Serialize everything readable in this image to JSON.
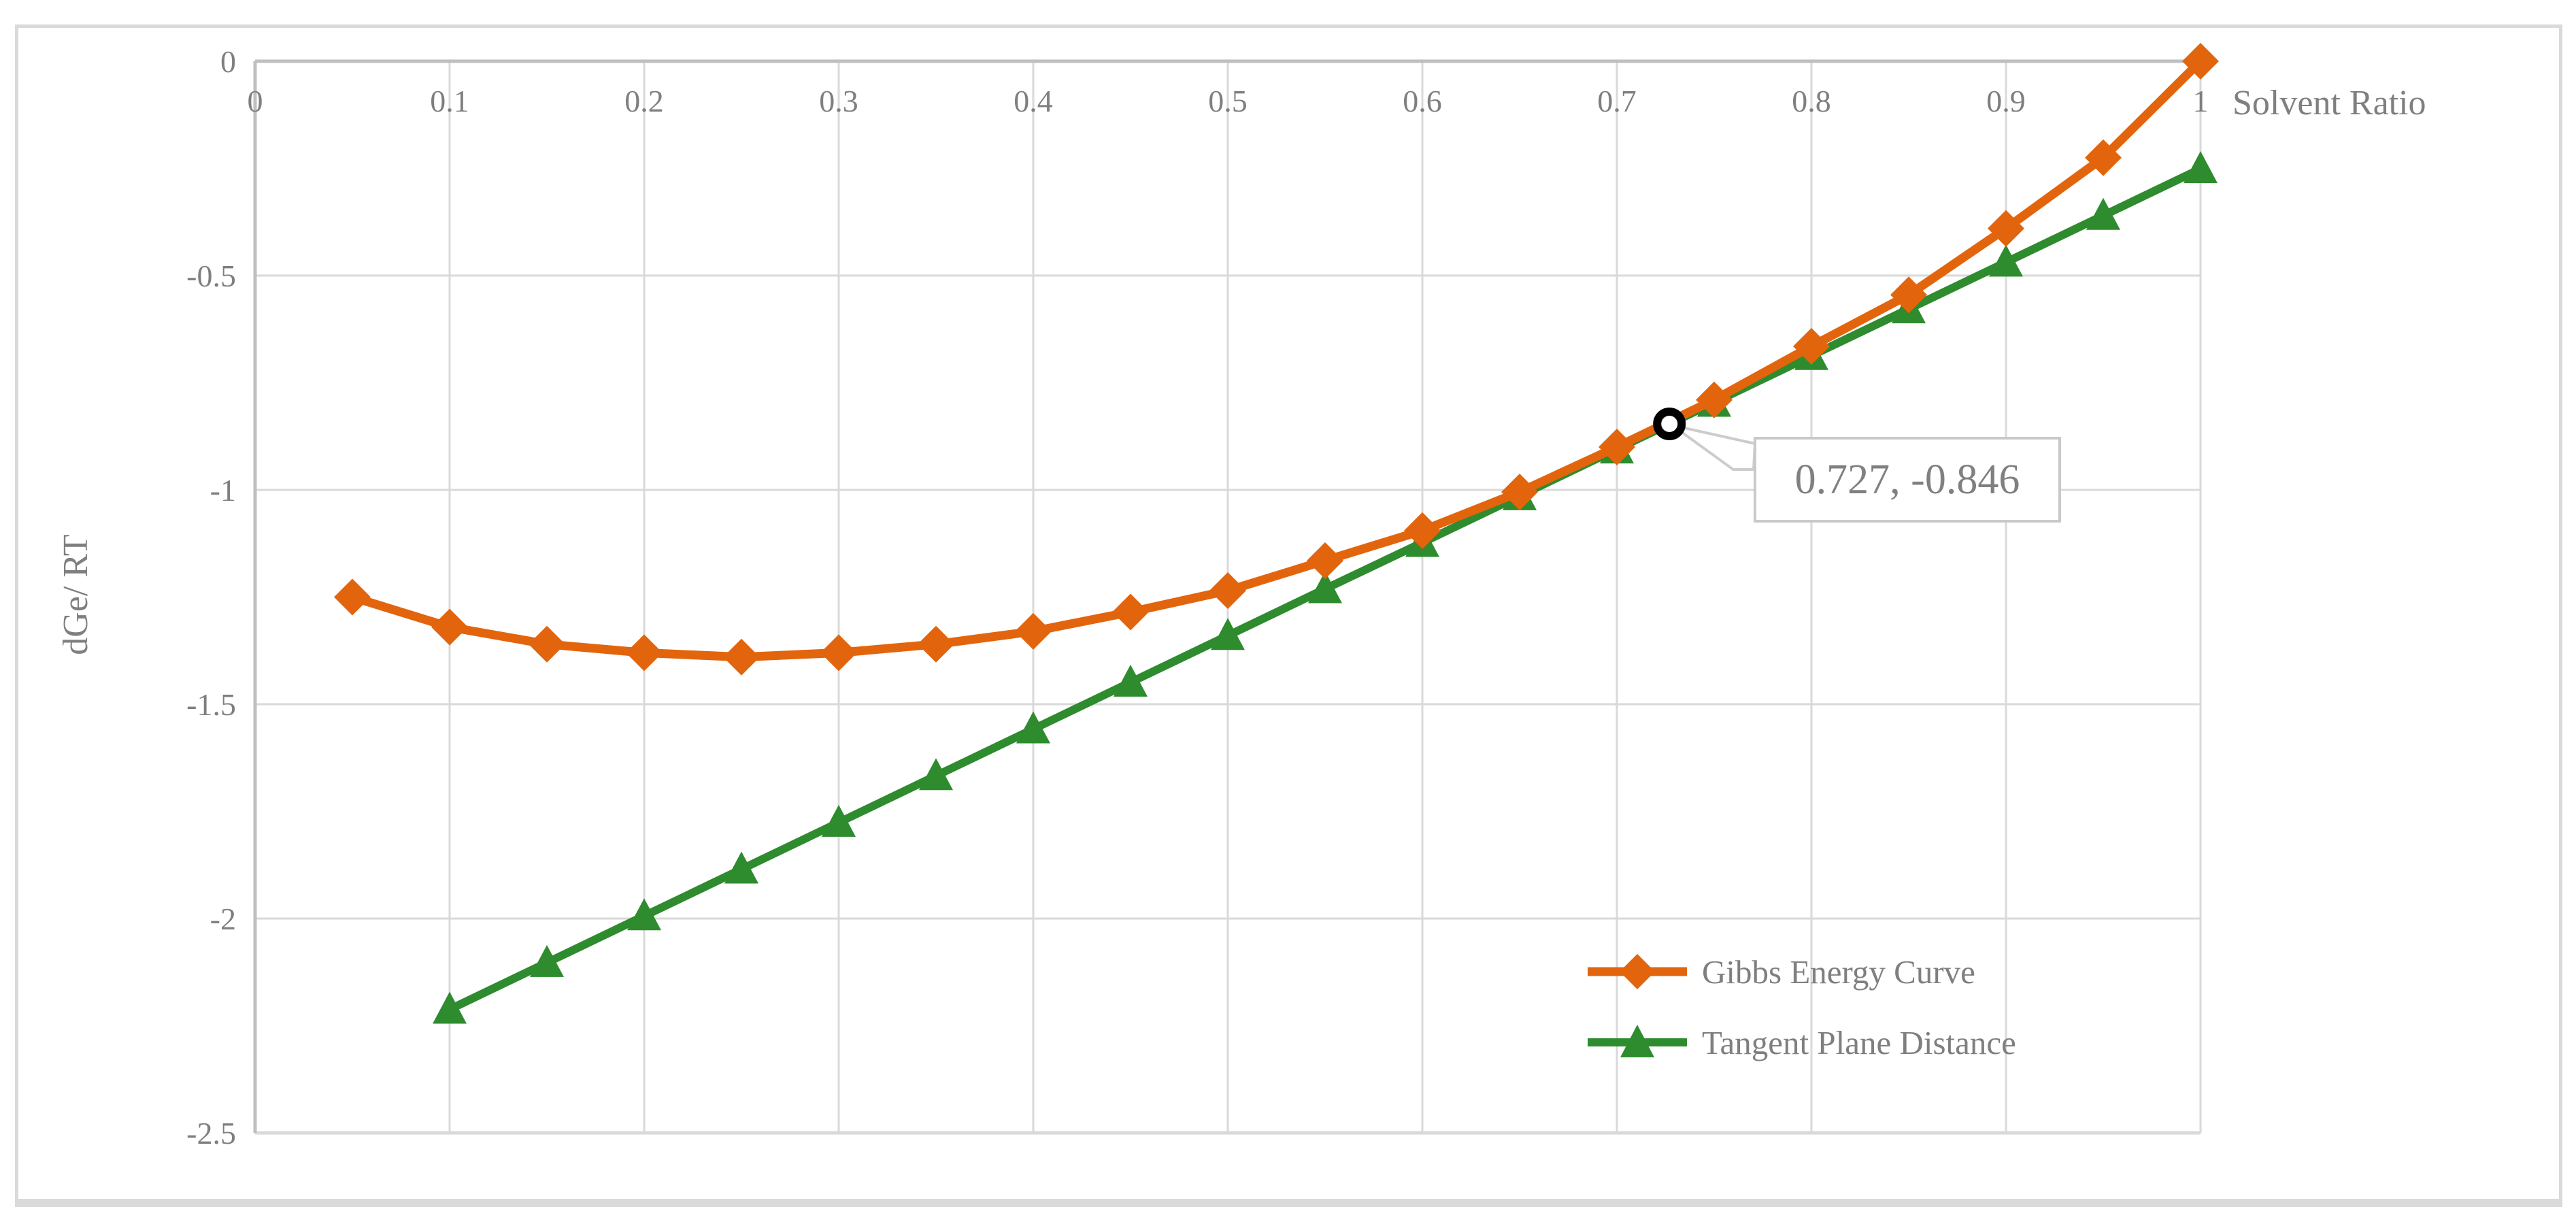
{
  "chart_data": {
    "type": "line",
    "title": "",
    "xlabel": "Solvent Ratio",
    "ylabel": "dGe/ RT",
    "xlim": [
      0,
      1
    ],
    "ylim": [
      -2.5,
      0
    ],
    "grid": true,
    "x_axis_position": "top (at y=0)",
    "legend_position": "inside lower right",
    "x_tick_values": [
      0,
      0.1,
      0.2,
      0.3,
      0.4,
      0.5,
      0.6,
      0.7,
      0.8,
      0.9,
      1
    ],
    "x_tick_labels": [
      "0",
      "0.1",
      "0.2",
      "0.3",
      "0.4",
      "0.5",
      "0.6",
      "0.7",
      "0.8",
      "0.9",
      "1"
    ],
    "y_tick_values": [
      0,
      -0.5,
      -1,
      -1.5,
      -2,
      -2.5
    ],
    "y_tick_labels": [
      "0",
      "-0.5",
      "-1",
      "-1.5",
      "-2",
      "-2.5"
    ],
    "series": [
      {
        "name": "Gibbs Energy Curve",
        "marker": "diamond",
        "color": "#e2650d",
        "x": [
          0.05,
          0.1,
          0.15,
          0.2,
          0.25,
          0.3,
          0.35,
          0.4,
          0.45,
          0.5,
          0.55,
          0.6,
          0.65,
          0.7,
          0.75,
          0.8,
          0.85,
          0.9,
          0.95,
          1.0
        ],
        "y": [
          -1.25,
          -1.32,
          -1.36,
          -1.38,
          -1.39,
          -1.38,
          -1.36,
          -1.33,
          -1.285,
          -1.235,
          -1.165,
          -1.095,
          -1.005,
          -0.9,
          -0.79,
          -0.665,
          -0.545,
          -0.39,
          -0.225,
          0
        ]
      },
      {
        "name": "Tangent Plane Distance",
        "marker": "triangle",
        "color": "#2e8b2e",
        "x": [
          0.1,
          0.15,
          0.2,
          0.25,
          0.3,
          0.35,
          0.4,
          0.45,
          0.5,
          0.55,
          0.6,
          0.65,
          0.7,
          0.75,
          0.8,
          0.85,
          0.9,
          0.95,
          1.0
        ],
        "y": [
          -2.212,
          -2.103,
          -1.994,
          -1.885,
          -1.776,
          -1.667,
          -1.558,
          -1.449,
          -1.34,
          -1.231,
          -1.123,
          -1.014,
          -0.905,
          -0.796,
          -0.687,
          -0.578,
          -0.469,
          -0.36,
          -0.251
        ]
      }
    ],
    "annotation": {
      "label": "0.727, -0.846",
      "x": 0.727,
      "y": -0.846,
      "marker": "open-circle",
      "marker_color": "#000000"
    }
  },
  "colors": {
    "background": "#ffffff",
    "gridline": "#d9d9d9",
    "axis_line": "#bfbfbf",
    "tick_text": "#7f7f7f",
    "axis_title_text": "#7f7f7f",
    "legend_text": "#7f7f7f",
    "callout_border": "#c9c9c9",
    "callout_text": "#808080",
    "leader_line": "#cccccc",
    "series_orange": "#e2650d",
    "series_green": "#2e8b2e",
    "annotation_marker": "#000000"
  }
}
